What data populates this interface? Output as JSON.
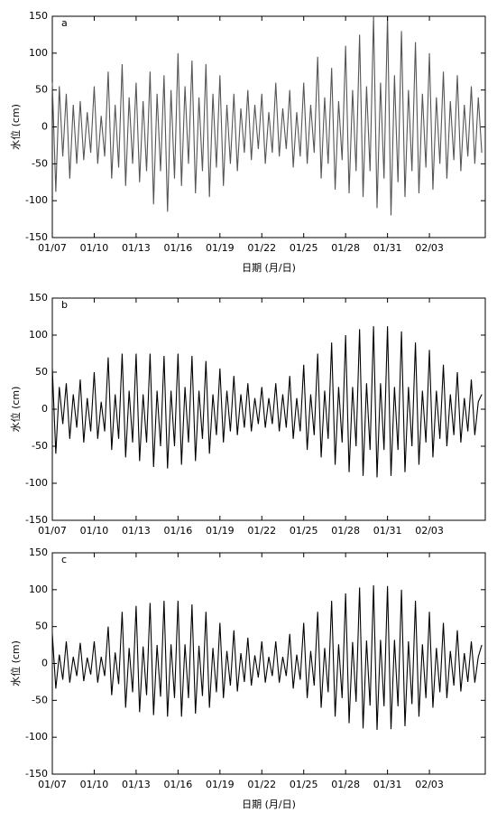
{
  "chart_data": [
    {
      "type": "line",
      "label": "a",
      "ylabel": "水位 (cm)",
      "xlabel": "日期 (月/日)",
      "x": [
        0,
        0.25,
        0.5,
        0.75,
        1,
        1.25,
        1.5,
        1.75,
        2,
        2.25,
        2.5,
        2.75,
        3,
        3.25,
        3.5,
        3.75,
        4,
        4.25,
        4.5,
        4.75,
        5,
        5.25,
        5.5,
        5.75,
        6,
        6.25,
        6.5,
        6.75,
        7,
        7.25,
        7.5,
        7.75,
        8,
        8.25,
        8.5,
        8.75,
        9,
        9.25,
        9.5,
        9.75,
        10,
        10.25,
        10.5,
        10.75,
        11,
        11.25,
        11.5,
        11.75,
        12,
        12.25,
        12.5,
        12.75,
        13,
        13.25,
        13.5,
        13.75,
        14,
        14.25,
        14.5,
        14.75,
        15,
        15.25,
        15.5,
        15.75,
        16,
        16.25,
        16.5,
        16.75,
        17,
        17.25,
        17.5,
        17.75,
        18,
        18.25,
        18.5,
        18.75,
        19,
        19.25,
        19.5,
        19.75,
        20,
        20.25,
        20.5,
        20.75,
        21,
        21.25,
        21.5,
        21.75,
        22,
        22.25,
        22.5,
        22.75,
        23,
        23.25,
        23.5,
        23.75,
        24,
        24.25,
        24.5,
        24.75,
        25,
        25.25,
        25.5,
        25.75,
        26,
        26.25,
        26.5,
        26.75,
        27,
        27.25,
        27.5,
        27.75,
        28,
        28.25,
        28.5,
        28.75,
        29,
        29.25,
        29.5,
        29.75,
        30,
        30.25,
        30.5,
        30.75
      ],
      "series": [
        {
          "color": "#555555",
          "values": [
            60,
            -88,
            55,
            -40,
            45,
            -70,
            30,
            -50,
            35,
            -45,
            20,
            -35,
            55,
            -50,
            15,
            -40,
            75,
            -70,
            30,
            -55,
            85,
            -80,
            40,
            -50,
            60,
            -75,
            35,
            -60,
            75,
            -105,
            45,
            -60,
            70,
            -115,
            50,
            -70,
            100,
            -80,
            55,
            -50,
            90,
            -90,
            40,
            -60,
            85,
            -95,
            45,
            -55,
            70,
            -80,
            30,
            -50,
            45,
            -60,
            25,
            -35,
            50,
            -45,
            30,
            -30,
            45,
            -50,
            20,
            -35,
            60,
            -40,
            25,
            -30,
            50,
            -55,
            20,
            -40,
            60,
            -50,
            30,
            -35,
            95,
            -70,
            40,
            -50,
            80,
            -85,
            35,
            -45,
            110,
            -90,
            50,
            -60,
            125,
            -95,
            55,
            -60,
            150,
            -110,
            60,
            -70,
            150,
            -120,
            70,
            -75,
            130,
            -95,
            50,
            -60,
            115,
            -90,
            45,
            -55,
            100,
            -85,
            40,
            -50,
            75,
            -70,
            35,
            -45,
            70,
            -60,
            30,
            -40,
            55,
            -50,
            40,
            -35
          ]
        }
      ],
      "xlim": [
        0,
        31
      ],
      "ylim": [
        -150,
        150
      ],
      "yticks": [
        -150,
        -100,
        -50,
        0,
        50,
        100,
        150
      ],
      "xticks": [
        {
          "value": 0,
          "label": "01/07"
        },
        {
          "value": 3,
          "label": "01/10"
        },
        {
          "value": 6,
          "label": "01/13"
        },
        {
          "value": 9,
          "label": "01/16"
        },
        {
          "value": 12,
          "label": "01/19"
        },
        {
          "value": 15,
          "label": "01/22"
        },
        {
          "value": 18,
          "label": "01/25"
        },
        {
          "value": 21,
          "label": "01/28"
        },
        {
          "value": 24,
          "label": "01/31"
        },
        {
          "value": 27,
          "label": "02/03"
        }
      ]
    },
    {
      "type": "line",
      "label": "b",
      "ylabel": "水位 (cm)",
      "x": [
        0,
        0.25,
        0.5,
        0.75,
        1,
        1.25,
        1.5,
        1.75,
        2,
        2.25,
        2.5,
        2.75,
        3,
        3.25,
        3.5,
        3.75,
        4,
        4.25,
        4.5,
        4.75,
        5,
        5.25,
        5.5,
        5.75,
        6,
        6.25,
        6.5,
        6.75,
        7,
        7.25,
        7.5,
        7.75,
        8,
        8.25,
        8.5,
        8.75,
        9,
        9.25,
        9.5,
        9.75,
        10,
        10.25,
        10.5,
        10.75,
        11,
        11.25,
        11.5,
        11.75,
        12,
        12.25,
        12.5,
        12.75,
        13,
        13.25,
        13.5,
        13.75,
        14,
        14.25,
        14.5,
        14.75,
        15,
        15.25,
        15.5,
        15.75,
        16,
        16.25,
        16.5,
        16.75,
        17,
        17.25,
        17.5,
        17.75,
        18,
        18.25,
        18.5,
        18.75,
        19,
        19.25,
        19.5,
        19.75,
        20,
        20.25,
        20.5,
        20.75,
        21,
        21.25,
        21.5,
        21.75,
        22,
        22.25,
        22.5,
        22.75,
        23,
        23.25,
        23.5,
        23.75,
        24,
        24.25,
        24.5,
        24.75,
        25,
        25.25,
        25.5,
        25.75,
        26,
        26.25,
        26.5,
        26.75,
        27,
        27.25,
        27.5,
        27.75,
        28,
        28.25,
        28.5,
        28.75,
        29,
        29.25,
        29.5,
        29.75,
        30,
        30.25,
        30.5,
        30.75
      ],
      "series": [
        {
          "color": "#000000",
          "values": [
            55,
            -60,
            30,
            -20,
            35,
            -40,
            20,
            -25,
            40,
            -45,
            15,
            -30,
            50,
            -40,
            10,
            -30,
            70,
            -55,
            20,
            -40,
            75,
            -65,
            25,
            -45,
            75,
            -70,
            20,
            -45,
            75,
            -78,
            25,
            -50,
            72,
            -80,
            25,
            -50,
            75,
            -75,
            30,
            -45,
            72,
            -70,
            25,
            -40,
            65,
            -60,
            20,
            -35,
            55,
            -45,
            25,
            -30,
            45,
            -35,
            20,
            -25,
            35,
            -30,
            15,
            -20,
            30,
            -25,
            15,
            -20,
            35,
            -30,
            20,
            -25,
            45,
            -40,
            15,
            -30,
            60,
            -55,
            20,
            -35,
            75,
            -65,
            25,
            -40,
            90,
            -75,
            30,
            -45,
            100,
            -85,
            30,
            -50,
            108,
            -90,
            35,
            -55,
            112,
            -92,
            35,
            -55,
            112,
            -90,
            30,
            -55,
            105,
            -85,
            30,
            -50,
            90,
            -75,
            25,
            -45,
            80,
            -65,
            25,
            -40,
            60,
            -50,
            20,
            -35,
            50,
            -45,
            15,
            -30,
            40,
            -35,
            10,
            20
          ]
        }
      ],
      "xlim": [
        0,
        31
      ],
      "ylim": [
        -150,
        150
      ],
      "yticks": [
        -150,
        -100,
        -50,
        0,
        50,
        100,
        150
      ],
      "xticks": [
        {
          "value": 0,
          "label": "01/07"
        },
        {
          "value": 3,
          "label": "01/10"
        },
        {
          "value": 6,
          "label": "01/13"
        },
        {
          "value": 9,
          "label": "01/16"
        },
        {
          "value": 12,
          "label": "01/19"
        },
        {
          "value": 15,
          "label": "01/22"
        },
        {
          "value": 18,
          "label": "01/25"
        },
        {
          "value": 21,
          "label": "01/28"
        },
        {
          "value": 24,
          "label": "01/31"
        },
        {
          "value": 27,
          "label": "02/03"
        }
      ]
    },
    {
      "type": "line",
      "label": "c",
      "ylabel": "水位 (cm)",
      "xlabel": "日期 (月/日)",
      "x": [
        0,
        0.25,
        0.5,
        0.75,
        1,
        1.25,
        1.5,
        1.75,
        2,
        2.25,
        2.5,
        2.75,
        3,
        3.25,
        3.5,
        3.75,
        4,
        4.25,
        4.5,
        4.75,
        5,
        5.25,
        5.5,
        5.75,
        6,
        6.25,
        6.5,
        6.75,
        7,
        7.25,
        7.5,
        7.75,
        8,
        8.25,
        8.5,
        8.75,
        9,
        9.25,
        9.5,
        9.75,
        10,
        10.25,
        10.5,
        10.75,
        11,
        11.25,
        11.5,
        11.75,
        12,
        12.25,
        12.5,
        12.75,
        13,
        13.25,
        13.5,
        13.75,
        14,
        14.25,
        14.5,
        14.75,
        15,
        15.25,
        15.5,
        15.75,
        16,
        16.25,
        16.5,
        16.75,
        17,
        17.25,
        17.5,
        17.75,
        18,
        18.25,
        18.5,
        18.75,
        19,
        19.25,
        19.5,
        19.75,
        20,
        20.25,
        20.5,
        20.75,
        21,
        21.25,
        21.5,
        21.75,
        22,
        22.25,
        22.5,
        22.75,
        23,
        23.25,
        23.5,
        23.75,
        24,
        24.25,
        24.5,
        24.75,
        25,
        25.25,
        25.5,
        25.75,
        26,
        26.25,
        26.5,
        26.75,
        27,
        27.25,
        27.5,
        27.75,
        28,
        28.25,
        28.5,
        28.75,
        29,
        29.25,
        29.5,
        29.75,
        30,
        30.25,
        30.5,
        30.75
      ],
      "series": [
        {
          "color": "#000000",
          "values": [
            40,
            -34,
            12,
            -22,
            30,
            -26,
            9,
            -17,
            28,
            -24,
            8,
            -15,
            30,
            -26,
            9,
            -17,
            50,
            -43,
            15,
            -28,
            70,
            -60,
            21,
            -39,
            78,
            -66,
            23,
            -43,
            82,
            -70,
            25,
            -45,
            85,
            -72,
            26,
            -47,
            85,
            -72,
            26,
            -47,
            80,
            -68,
            24,
            -44,
            70,
            -60,
            21,
            -39,
            55,
            -47,
            17,
            -30,
            45,
            -38,
            14,
            -25,
            35,
            -30,
            11,
            -19,
            30,
            -26,
            9,
            -17,
            30,
            -26,
            9,
            -17,
            40,
            -34,
            12,
            -22,
            55,
            -47,
            17,
            -30,
            70,
            -60,
            21,
            -39,
            85,
            -72,
            26,
            -47,
            95,
            -81,
            29,
            -52,
            103,
            -88,
            31,
            -57,
            106,
            -90,
            32,
            -58,
            105,
            -89,
            32,
            -58,
            100,
            -85,
            30,
            -55,
            85,
            -72,
            26,
            -47,
            70,
            -60,
            21,
            -39,
            55,
            -47,
            17,
            -30,
            45,
            -38,
            14,
            -25,
            30,
            -26,
            9,
            25
          ]
        }
      ],
      "xlim": [
        0,
        31
      ],
      "ylim": [
        -150,
        150
      ],
      "yticks": [
        -150,
        -100,
        -50,
        0,
        50,
        100,
        150
      ],
      "xticks": [
        {
          "value": 0,
          "label": "01/07"
        },
        {
          "value": 3,
          "label": "01/10"
        },
        {
          "value": 6,
          "label": "01/13"
        },
        {
          "value": 9,
          "label": "01/16"
        },
        {
          "value": 12,
          "label": "01/19"
        },
        {
          "value": 15,
          "label": "01/22"
        },
        {
          "value": 18,
          "label": "01/25"
        },
        {
          "value": 21,
          "label": "01/28"
        },
        {
          "value": 24,
          "label": "01/31"
        },
        {
          "value": 27,
          "label": "02/03"
        }
      ]
    }
  ]
}
